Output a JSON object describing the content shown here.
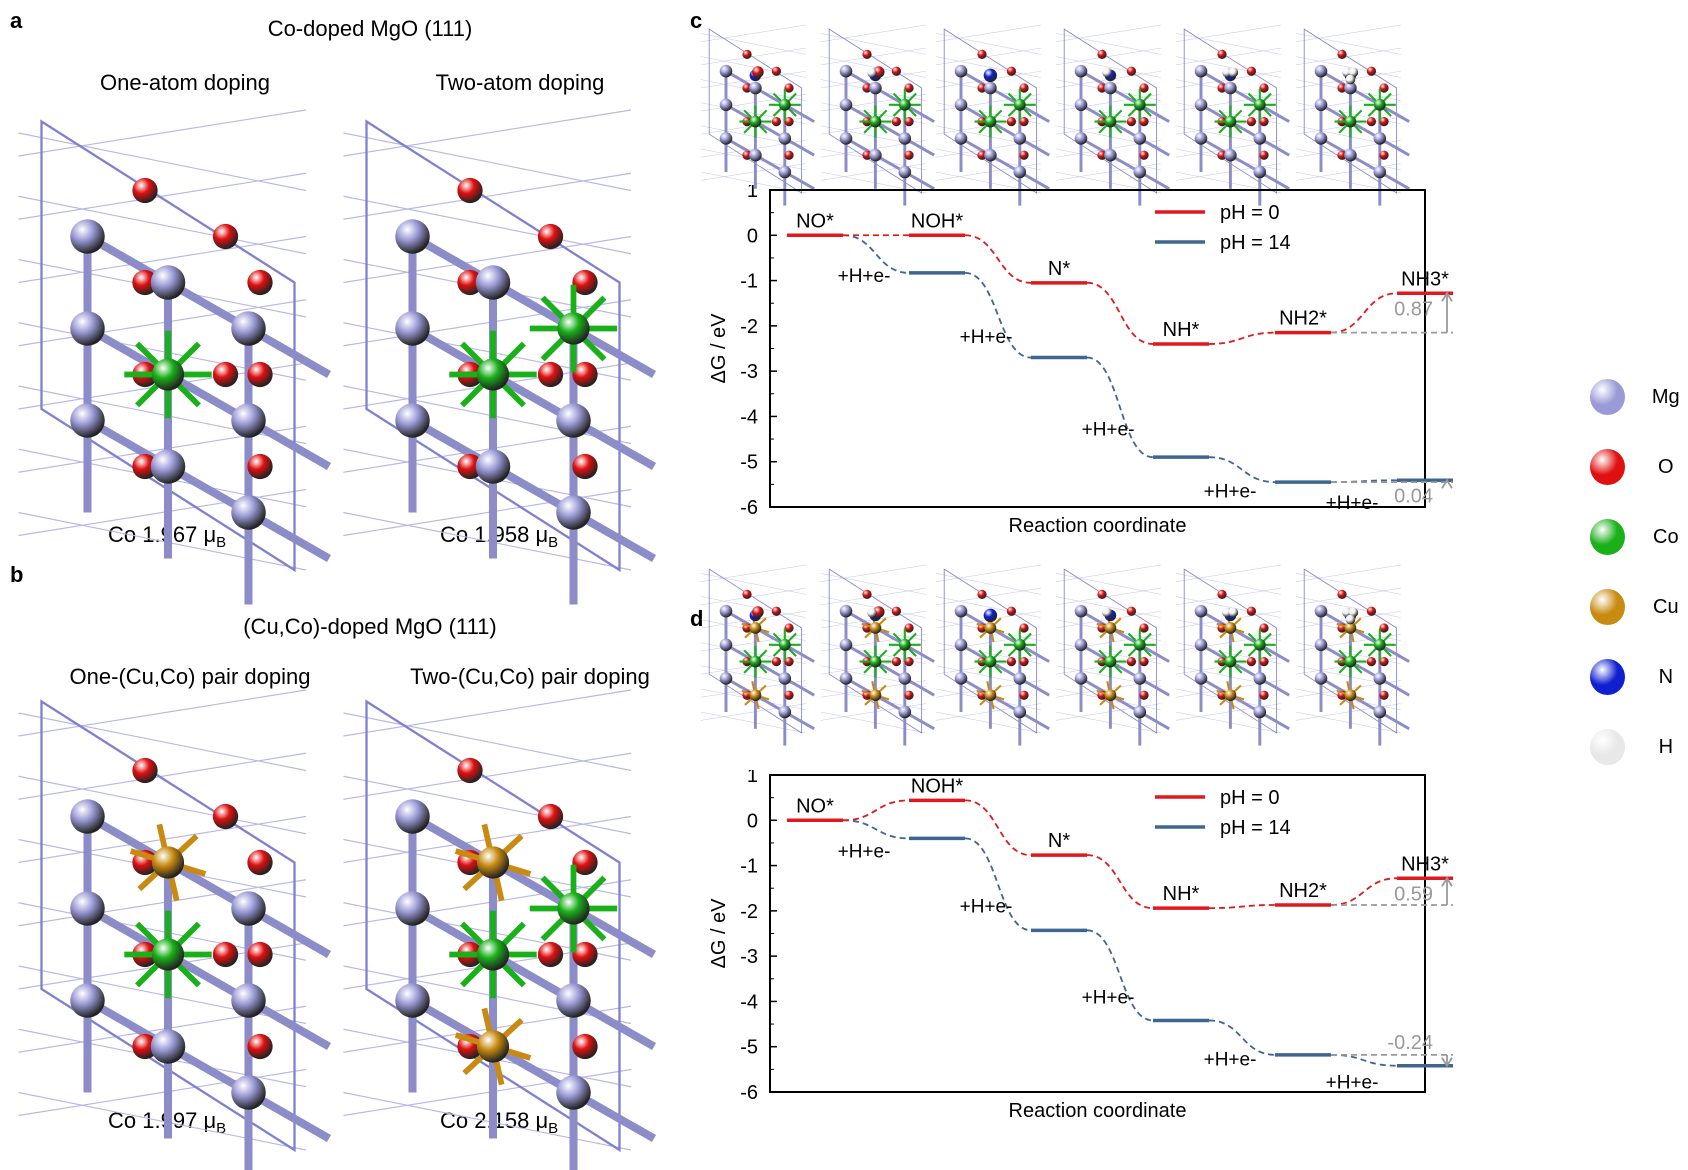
{
  "panels": {
    "a": {
      "letter": "a",
      "header": "Co-doped MgO (111)",
      "left_title": "One-atom doping",
      "right_title": "Two-atom doping",
      "left_moment": "1.967",
      "right_moment": "1.958"
    },
    "b": {
      "letter": "b",
      "header": "(Cu,Co)-doped MgO (111)",
      "left_title": "One-(Cu,Co) pair doping",
      "right_title": "Two-(Cu,Co) pair doping",
      "left_moment": "1.997",
      "right_moment": "2.158"
    },
    "c": {
      "letter": "c"
    },
    "d": {
      "letter": "d"
    },
    "moment_prefix": "Co",
    "moment_unit": "μ",
    "moment_unit_sub": "B"
  },
  "element_legend": [
    {
      "label": "Mg",
      "color": "#9a9ad6"
    },
    {
      "label": "O",
      "color": "#e01010"
    },
    {
      "label": "Co",
      "color": "#19b019"
    },
    {
      "label": "Cu",
      "color": "#c88a10"
    },
    {
      "label": "N",
      "color": "#1020d0"
    },
    {
      "label": "H",
      "color": "#e8e8e8"
    }
  ],
  "colors": {
    "mg": "#9a9ad6",
    "o": "#e01010",
    "co": "#19b019",
    "cu": "#c88a10",
    "n": "#1020d0",
    "h": "#f0f0f0",
    "ph0": "#e0191e",
    "ph14": "#3e6690",
    "gap": "#999999"
  },
  "chart_data": [
    {
      "panel": "c",
      "type": "line",
      "xlabel": "Reaction coordinate",
      "ylabel": "ΔG / eV",
      "ylim": [
        -6,
        1
      ],
      "yticks": [
        1,
        0,
        -1,
        -2,
        -3,
        -4,
        -5,
        -6
      ],
      "legend_position": "top-right",
      "categories": [
        "NO*",
        "NOH*",
        "N*",
        "NH*",
        "NH2*",
        "NH3*"
      ],
      "series": [
        {
          "name": "pH = 0",
          "values": [
            0,
            0,
            -1.05,
            -2.4,
            -2.15,
            -1.28
          ]
        },
        {
          "name": "pH = 14",
          "values": [
            0,
            -0.83,
            -2.7,
            -4.9,
            -5.45,
            -5.41
          ]
        }
      ],
      "step_labels": [
        "+H+e-",
        "+H+e-",
        "+H+e-",
        "+H+e-",
        "+H+e-"
      ],
      "gap_annotations": [
        {
          "text": "0.87",
          "series": "pH = 0"
        },
        {
          "text": "0.04",
          "series": "pH = 14"
        }
      ]
    },
    {
      "panel": "d",
      "type": "line",
      "xlabel": "Reaction coordinate",
      "ylabel": "ΔG / eV",
      "ylim": [
        -6,
        1
      ],
      "yticks": [
        1,
        0,
        -1,
        -2,
        -3,
        -4,
        -5,
        -6
      ],
      "legend_position": "top-right",
      "categories": [
        "NO*",
        "NOH*",
        "N*",
        "NH*",
        "NH2*",
        "NH3*"
      ],
      "series": [
        {
          "name": "pH = 0",
          "values": [
            0,
            0.44,
            -0.77,
            -1.94,
            -1.87,
            -1.28
          ]
        },
        {
          "name": "pH = 14",
          "values": [
            0,
            -0.4,
            -2.43,
            -4.42,
            -5.18,
            -5.42
          ]
        }
      ],
      "step_labels": [
        "+H+e-",
        "+H+e-",
        "+H+e-",
        "+H+e-",
        "+H+e-"
      ],
      "gap_annotations": [
        {
          "text": "0.59",
          "series": "pH = 0"
        },
        {
          "text": "-0.24",
          "series": "pH = 14"
        }
      ]
    }
  ]
}
